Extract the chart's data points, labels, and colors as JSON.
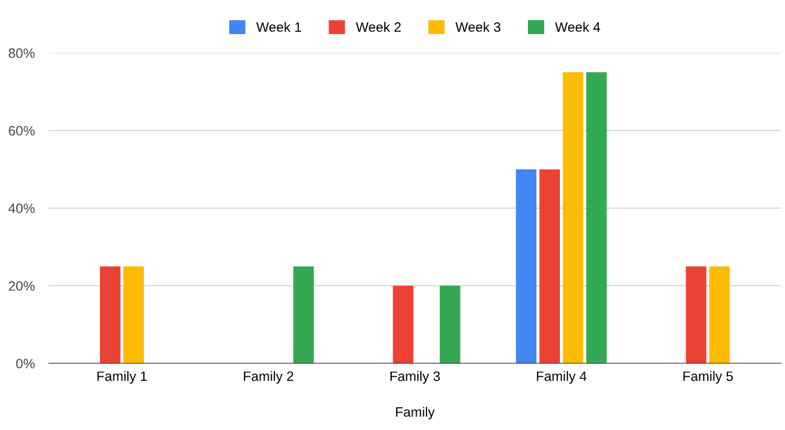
{
  "chart_data": {
    "type": "bar",
    "xlabel": "Family",
    "categories": [
      "Family 1",
      "Family 2",
      "Family 3",
      "Family 4",
      "Family 5"
    ],
    "series": [
      {
        "name": "Week 1",
        "color": "#4285f4",
        "values": [
          0,
          0,
          0,
          50,
          0
        ]
      },
      {
        "name": "Week 2",
        "color": "#ea4335",
        "values": [
          25,
          0,
          20,
          50,
          25
        ]
      },
      {
        "name": "Week 3",
        "color": "#fbbc04",
        "values": [
          25,
          0,
          0,
          75,
          25
        ]
      },
      {
        "name": "Week 4",
        "color": "#34a853",
        "values": [
          0,
          25,
          20,
          75,
          0
        ]
      }
    ],
    "ylim": [
      0,
      80
    ],
    "yticks": [
      {
        "value": 0,
        "label": "0%"
      },
      {
        "value": 20,
        "label": "20%"
      },
      {
        "value": 40,
        "label": "40%"
      },
      {
        "value": 60,
        "label": "60%"
      },
      {
        "value": 80,
        "label": "80%"
      }
    ],
    "grid": "y",
    "legend": "top"
  }
}
